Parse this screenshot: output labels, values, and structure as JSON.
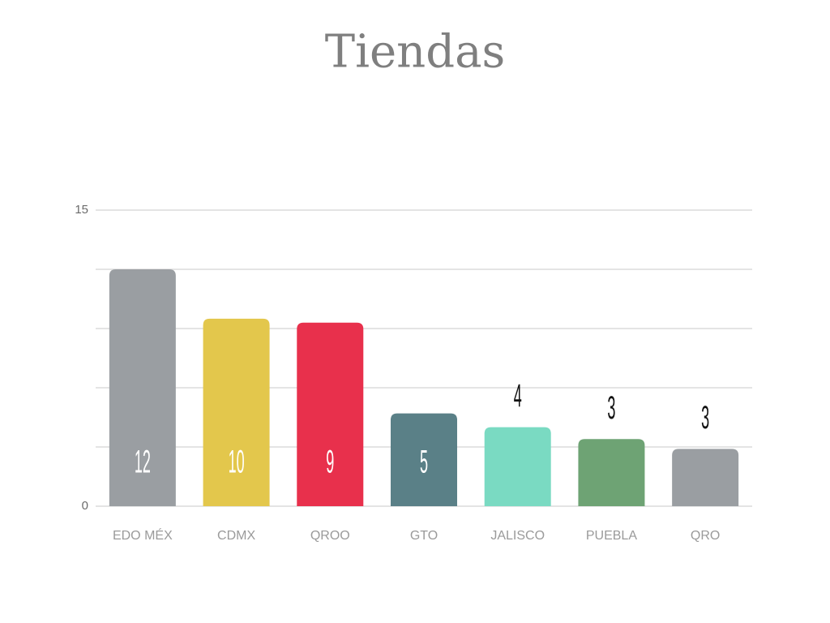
{
  "chart_data": {
    "type": "bar",
    "title": "Tiendas",
    "categories": [
      "EDO MÉX",
      "CDMX",
      "QROO",
      "GTO",
      "JALISCO",
      "PUEBLA",
      "QRO"
    ],
    "values": [
      12,
      9.5,
      9.3,
      4.7,
      4,
      3.4,
      2.9
    ],
    "value_labels": [
      "12",
      "10",
      "9",
      "5",
      "4",
      "3",
      "3"
    ],
    "colors": [
      "#9a9ea2",
      "#e3c74c",
      "#e8304c",
      "#5a8087",
      "#7adac2",
      "#6ea374",
      "#9a9ea2"
    ],
    "ylim": [
      0,
      15
    ],
    "yticks": [
      0,
      15
    ],
    "ygrid": [
      0,
      3,
      6,
      9,
      12,
      15
    ],
    "grid": true
  }
}
